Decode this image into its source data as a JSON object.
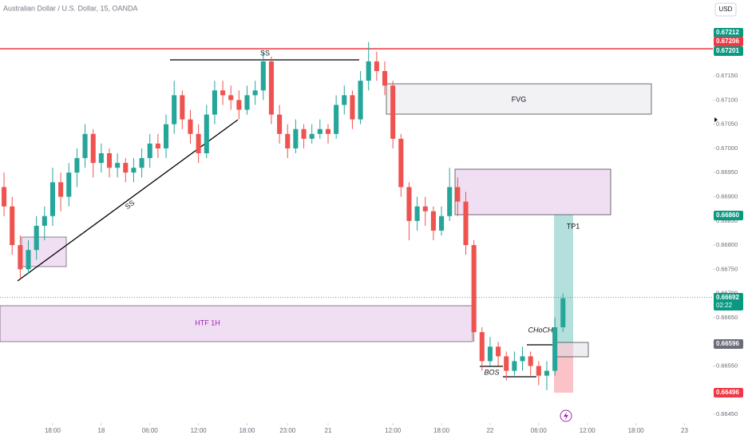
{
  "chart_data": {
    "type": "candlestick",
    "title": "Australian Dollar / U.S. Dollar, 15, OANDA",
    "currency": "USD",
    "up_color": "#26a69a",
    "down_color": "#ef5350",
    "ylim": [
      0.66432,
      0.67307
    ],
    "yticks": [
      {
        "value": 0.6645,
        "label": "0.66450"
      },
      {
        "value": 0.665,
        "label": "0.66500"
      },
      {
        "value": 0.6655,
        "label": "0.66550"
      },
      {
        "value": 0.666,
        "label": "0.66600"
      },
      {
        "value": 0.6665,
        "label": "0.66650"
      },
      {
        "value": 0.667,
        "label": "0.66700"
      },
      {
        "value": 0.6675,
        "label": "0.66750"
      },
      {
        "value": 0.668,
        "label": "0.66800"
      },
      {
        "value": 0.6685,
        "label": "0.66850"
      },
      {
        "value": 0.669,
        "label": "0.66900"
      },
      {
        "value": 0.6695,
        "label": "0.66950"
      },
      {
        "value": 0.67,
        "label": "0.67000"
      },
      {
        "value": 0.6705,
        "label": "0.67050"
      },
      {
        "value": 0.671,
        "label": "0.67100"
      },
      {
        "value": 0.6715,
        "label": "0.67150"
      }
    ],
    "xlim": [
      -0.5,
      87.5
    ],
    "xticks": [
      {
        "value": 6,
        "label": "18:00"
      },
      {
        "value": 12,
        "label": "18"
      },
      {
        "value": 18,
        "label": "06:00"
      },
      {
        "value": 24,
        "label": "12:00"
      },
      {
        "value": 30,
        "label": "18:00"
      },
      {
        "value": 35,
        "label": "23:00"
      },
      {
        "value": 40,
        "label": "21"
      },
      {
        "value": 48,
        "label": "12:00"
      },
      {
        "value": 54,
        "label": "18:00"
      },
      {
        "value": 60,
        "label": "22"
      },
      {
        "value": 66,
        "label": "06:00"
      },
      {
        "value": 72,
        "label": "12:00"
      },
      {
        "value": 78,
        "label": "18:00"
      },
      {
        "value": 84,
        "label": "23"
      }
    ],
    "x": [
      0,
      1,
      2,
      3,
      4,
      5,
      6,
      7,
      8,
      9,
      10,
      11,
      12,
      13,
      14,
      15,
      16,
      17,
      18,
      19,
      20,
      21,
      22,
      23,
      24,
      25,
      26,
      27,
      28,
      29,
      30,
      31,
      32,
      33,
      34,
      35,
      36,
      37,
      38,
      39,
      40,
      41,
      42,
      43,
      44,
      45,
      46,
      47,
      48,
      49,
      50,
      51,
      52,
      53,
      54,
      55,
      56,
      57,
      58,
      59,
      60,
      61,
      62,
      63,
      64,
      65,
      66,
      67,
      68,
      69
    ],
    "candles": [
      [
        0.6692,
        0.6695,
        0.6686,
        0.6688
      ],
      [
        0.6688,
        0.669,
        0.6678,
        0.668
      ],
      [
        0.668,
        0.6682,
        0.6673,
        0.6675
      ],
      [
        0.6675,
        0.6681,
        0.6674,
        0.6679
      ],
      [
        0.6679,
        0.6686,
        0.6677,
        0.6684
      ],
      [
        0.6684,
        0.6688,
        0.6681,
        0.6686
      ],
      [
        0.6686,
        0.6696,
        0.6684,
        0.6693
      ],
      [
        0.6693,
        0.6695,
        0.6687,
        0.669
      ],
      [
        0.669,
        0.6697,
        0.6688,
        0.6695
      ],
      [
        0.6695,
        0.67,
        0.6692,
        0.6698
      ],
      [
        0.6698,
        0.6705,
        0.6696,
        0.6703
      ],
      [
        0.6703,
        0.6704,
        0.6694,
        0.6697
      ],
      [
        0.6697,
        0.6701,
        0.6695,
        0.6699
      ],
      [
        0.6699,
        0.67,
        0.6694,
        0.6696
      ],
      [
        0.6696,
        0.6699,
        0.6694,
        0.6697
      ],
      [
        0.6697,
        0.6698,
        0.6693,
        0.6695
      ],
      [
        0.6695,
        0.6698,
        0.6693,
        0.6696
      ],
      [
        0.6696,
        0.67,
        0.6694,
        0.6698
      ],
      [
        0.6698,
        0.6703,
        0.6696,
        0.6701
      ],
      [
        0.6701,
        0.6703,
        0.6698,
        0.67
      ],
      [
        0.67,
        0.6707,
        0.6698,
        0.6705
      ],
      [
        0.6705,
        0.6714,
        0.6703,
        0.6711
      ],
      [
        0.6711,
        0.6712,
        0.6704,
        0.6706
      ],
      [
        0.6706,
        0.6708,
        0.6701,
        0.6703
      ],
      [
        0.6703,
        0.6705,
        0.6697,
        0.6699
      ],
      [
        0.6699,
        0.6709,
        0.6698,
        0.6707
      ],
      [
        0.6707,
        0.6714,
        0.6705,
        0.6712
      ],
      [
        0.6712,
        0.6714,
        0.6709,
        0.6711
      ],
      [
        0.6711,
        0.6713,
        0.6708,
        0.671
      ],
      [
        0.671,
        0.6712,
        0.6706,
        0.6708
      ],
      [
        0.6708,
        0.6713,
        0.6707,
        0.6711
      ],
      [
        0.6711,
        0.6714,
        0.6709,
        0.6712
      ],
      [
        0.6712,
        0.672,
        0.671,
        0.6718
      ],
      [
        0.6718,
        0.6719,
        0.6705,
        0.6707
      ],
      [
        0.6707,
        0.6709,
        0.6701,
        0.6703
      ],
      [
        0.6703,
        0.6705,
        0.6698,
        0.67
      ],
      [
        0.67,
        0.6706,
        0.6699,
        0.6704
      ],
      [
        0.6704,
        0.6705,
        0.67,
        0.6702
      ],
      [
        0.6702,
        0.6705,
        0.6701,
        0.6703
      ],
      [
        0.6703,
        0.6706,
        0.6702,
        0.6704
      ],
      [
        0.6704,
        0.6705,
        0.6701,
        0.6703
      ],
      [
        0.6703,
        0.6711,
        0.6702,
        0.6709
      ],
      [
        0.6709,
        0.6713,
        0.6707,
        0.6711
      ],
      [
        0.6711,
        0.6712,
        0.6704,
        0.6706
      ],
      [
        0.6706,
        0.6716,
        0.6705,
        0.6714
      ],
      [
        0.6714,
        0.6722,
        0.6712,
        0.6718
      ],
      [
        0.6718,
        0.672,
        0.6714,
        0.6716
      ],
      [
        0.6716,
        0.6718,
        0.6711,
        0.6713
      ],
      [
        0.6713,
        0.6714,
        0.67,
        0.6702
      ],
      [
        0.6702,
        0.6703,
        0.669,
        0.6692
      ],
      [
        0.6692,
        0.6693,
        0.6681,
        0.6685
      ],
      [
        0.6685,
        0.669,
        0.6683,
        0.6688
      ],
      [
        0.6688,
        0.669,
        0.6684,
        0.6687
      ],
      [
        0.6687,
        0.6688,
        0.6681,
        0.6683
      ],
      [
        0.6683,
        0.6688,
        0.6682,
        0.6686
      ],
      [
        0.6686,
        0.6696,
        0.6685,
        0.6692
      ],
      [
        0.6692,
        0.6694,
        0.6686,
        0.6689
      ],
      [
        0.6689,
        0.6691,
        0.6678,
        0.668
      ],
      [
        0.668,
        0.6681,
        0.666,
        0.6662
      ],
      [
        0.6662,
        0.6663,
        0.6654,
        0.6656
      ],
      [
        0.6656,
        0.6661,
        0.6655,
        0.6659
      ],
      [
        0.6659,
        0.666,
        0.6655,
        0.6657
      ],
      [
        0.6657,
        0.6658,
        0.6652,
        0.6654
      ],
      [
        0.6654,
        0.6658,
        0.6653,
        0.6656
      ],
      [
        0.6656,
        0.6659,
        0.6654,
        0.6657
      ],
      [
        0.6657,
        0.6658,
        0.6653,
        0.6655
      ],
      [
        0.6655,
        0.6656,
        0.6651,
        0.6653
      ],
      [
        0.6653,
        0.6656,
        0.665,
        0.6654
      ],
      [
        0.6654,
        0.6665,
        0.6653,
        0.6663
      ],
      [
        0.6663,
        0.667,
        0.6662,
        0.6669
      ]
    ],
    "price_labels": [
      {
        "value": 0.67212,
        "label": "0.67212",
        "color": "#089981"
      },
      {
        "value": 0.67206,
        "label": "0.67206",
        "color": "#f23645"
      },
      {
        "value": 0.67201,
        "label": "0.67201",
        "color": "#089981"
      },
      {
        "value": 0.6686,
        "label": "0.66860",
        "color": "#089981"
      },
      {
        "value": 0.66692,
        "label": "0.66692",
        "color": "#089981"
      },
      {
        "value": 0.66596,
        "label": "0.66596",
        "color": "#6a6d78"
      },
      {
        "value": 0.66496,
        "label": "0.66496",
        "color": "#f23645"
      }
    ],
    "countdown": "02:22",
    "annotations": {
      "fvg": "FVG",
      "htf": "HTF 1H",
      "tp": "TP1",
      "ss_top": "SS",
      "ss_trend": "SS",
      "bos": "BOS",
      "choch": "CHoCH"
    }
  }
}
